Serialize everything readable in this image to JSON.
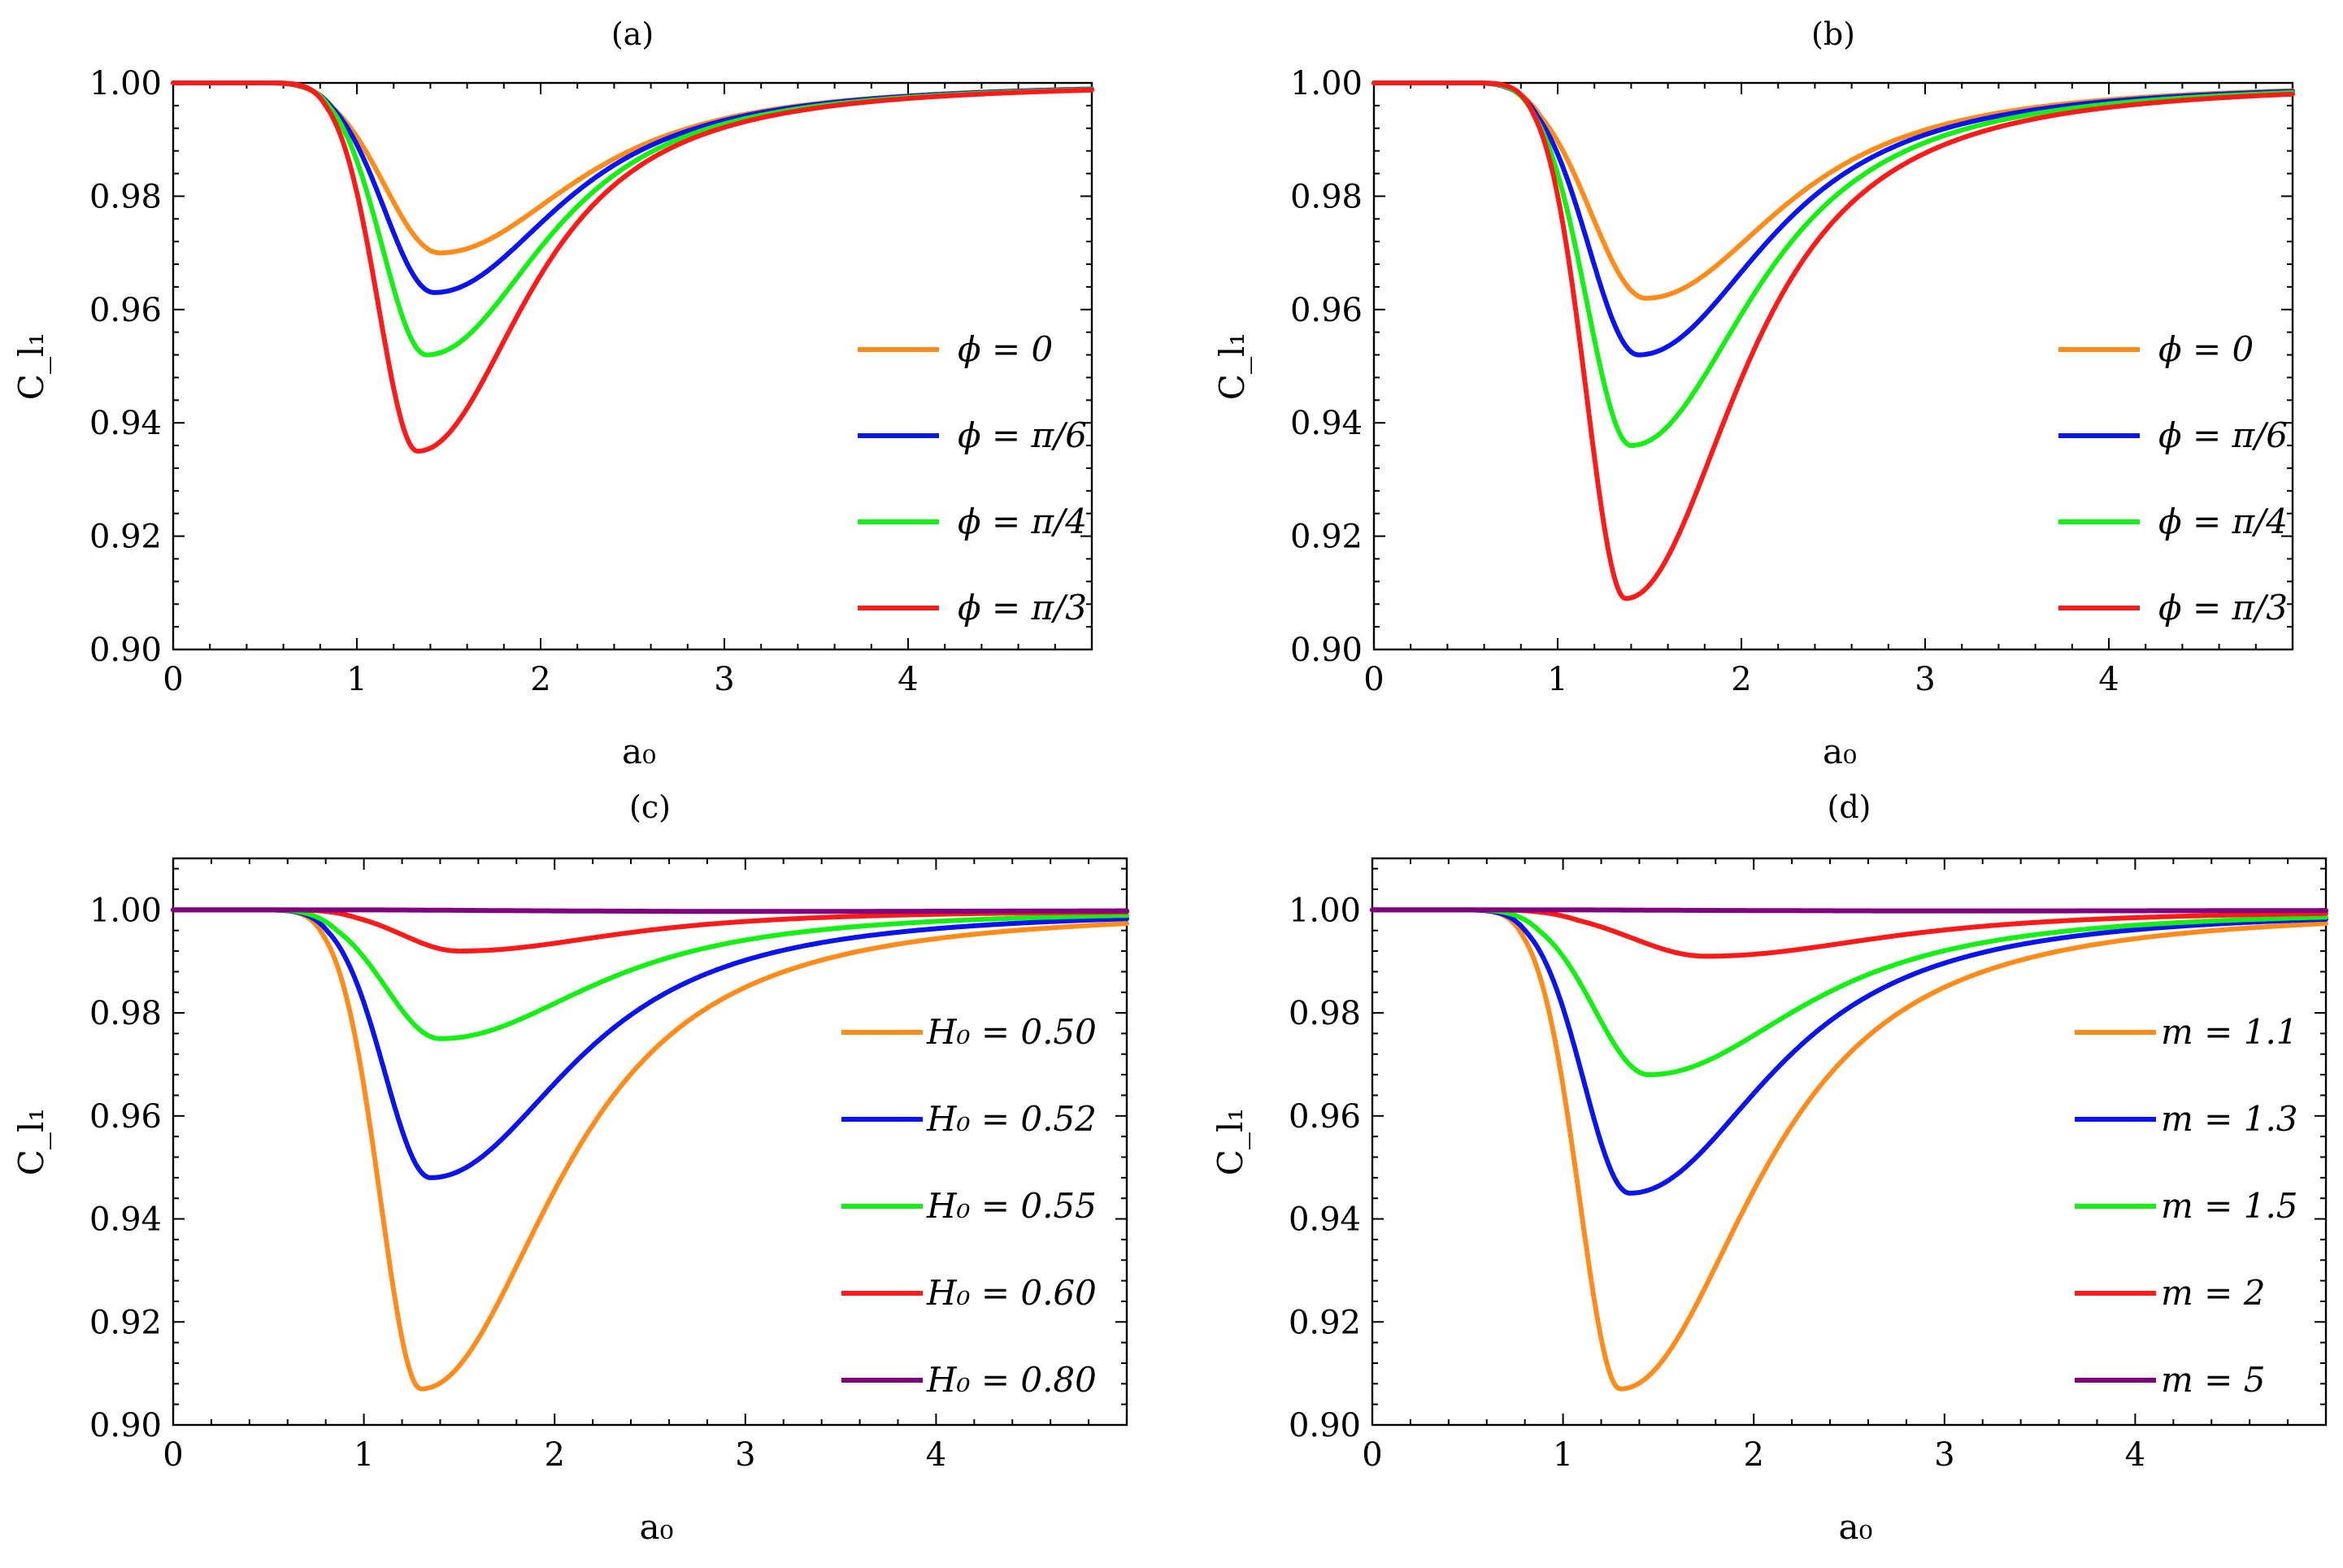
{
  "figure": {
    "panels": [
      "(a)",
      "(b)",
      "(c)",
      "(d)"
    ]
  },
  "chart_data": [
    {
      "type": "line",
      "title": "(a)",
      "xlabel": "a₀",
      "ylabel": "C_l₁",
      "xlim": [
        0,
        5
      ],
      "ylim": [
        0.9,
        1.0
      ],
      "x_ticks": [
        "0",
        "1",
        "2",
        "3",
        "4"
      ],
      "y_ticks": [
        "0.90",
        "0.92",
        "0.94",
        "0.96",
        "0.98",
        "1.00"
      ],
      "legend_position": "right",
      "series": [
        {
          "name": "ϕ = 0",
          "color": "#FF8C1A",
          "min_x": 1.45,
          "min_y": 0.97,
          "onset": 0.55,
          "w_left": 0.42,
          "w_right": 1.05
        },
        {
          "name": "ϕ = π/6",
          "color": "#0A14F0",
          "min_x": 1.42,
          "min_y": 0.963,
          "onset": 0.55,
          "w_left": 0.38,
          "w_right": 0.98
        },
        {
          "name": "ϕ = π/4",
          "color": "#14F014",
          "min_x": 1.38,
          "min_y": 0.952,
          "onset": 0.55,
          "w_left": 0.34,
          "w_right": 0.92
        },
        {
          "name": "ϕ = π/3",
          "color": "#FF1A1A",
          "min_x": 1.33,
          "min_y": 0.935,
          "onset": 0.55,
          "w_left": 0.3,
          "w_right": 0.85
        }
      ]
    },
    {
      "type": "line",
      "title": "(b)",
      "xlabel": "a₀",
      "ylabel": "C_l₁",
      "xlim": [
        0,
        5
      ],
      "ylim": [
        0.9,
        1.0
      ],
      "x_ticks": [
        "0",
        "1",
        "2",
        "3",
        "4"
      ],
      "y_ticks": [
        "0.90",
        "0.92",
        "0.94",
        "0.96",
        "0.98",
        "1.00"
      ],
      "legend_position": "right",
      "series": [
        {
          "name": "ϕ = 0",
          "color": "#FF8C1A",
          "min_x": 1.48,
          "min_y": 0.962,
          "onset": 0.58,
          "w_left": 0.42,
          "w_right": 1.05
        },
        {
          "name": "ϕ = π/6",
          "color": "#0A14F0",
          "min_x": 1.44,
          "min_y": 0.952,
          "onset": 0.58,
          "w_left": 0.38,
          "w_right": 1.0
        },
        {
          "name": "ϕ = π/4",
          "color": "#14F014",
          "min_x": 1.4,
          "min_y": 0.936,
          "onset": 0.58,
          "w_left": 0.34,
          "w_right": 0.95
        },
        {
          "name": "ϕ = π/3",
          "color": "#FF1A1A",
          "min_x": 1.37,
          "min_y": 0.909,
          "onset": 0.58,
          "w_left": 0.3,
          "w_right": 0.88
        }
      ]
    },
    {
      "type": "line",
      "title": "(c)",
      "xlabel": "a₀",
      "ylabel": "C_l₁",
      "xlim": [
        0,
        5
      ],
      "ylim": [
        0.9,
        1.01
      ],
      "x_ticks": [
        "0",
        "1",
        "2",
        "3",
        "4"
      ],
      "y_ticks": [
        "0.90",
        "0.92",
        "0.94",
        "0.96",
        "0.98",
        "1.00"
      ],
      "legend_position": "right",
      "series": [
        {
          "name": "H₀ = 0.50",
          "color": "#FF8C1A",
          "min_x": 1.3,
          "min_y": 0.907,
          "onset": 0.5,
          "w_left": 0.3,
          "w_right": 1.0
        },
        {
          "name": "H₀ = 0.52",
          "color": "#0A14F0",
          "min_x": 1.35,
          "min_y": 0.948,
          "onset": 0.5,
          "w_left": 0.34,
          "w_right": 1.05
        },
        {
          "name": "H₀ = 0.55",
          "color": "#14F014",
          "min_x": 1.4,
          "min_y": 0.975,
          "onset": 0.55,
          "w_left": 0.4,
          "w_right": 1.15
        },
        {
          "name": "H₀ = 0.60",
          "color": "#FF1A1A",
          "min_x": 1.5,
          "min_y": 0.992,
          "onset": 0.65,
          "w_left": 0.42,
          "w_right": 1.2
        },
        {
          "name": "H₀ = 0.80",
          "color": "#800080",
          "min_x": 3.0,
          "min_y": 0.9997,
          "onset": 1.0,
          "w_left": 1.5,
          "w_right": 3.0
        }
      ]
    },
    {
      "type": "line",
      "title": "(d)",
      "xlabel": "a₀",
      "ylabel": "C_l₁",
      "xlim": [
        0,
        5
      ],
      "ylim": [
        0.9,
        1.01
      ],
      "x_ticks": [
        "0",
        "1",
        "2",
        "3",
        "4"
      ],
      "y_ticks": [
        "0.90",
        "0.92",
        "0.94",
        "0.96",
        "0.98",
        "1.00"
      ],
      "legend_position": "right",
      "series": [
        {
          "name": "m = 1.1",
          "color": "#FF8C1A",
          "min_x": 1.3,
          "min_y": 0.907,
          "onset": 0.5,
          "w_left": 0.3,
          "w_right": 1.0
        },
        {
          "name": "m = 1.3",
          "color": "#0A14F0",
          "min_x": 1.35,
          "min_y": 0.945,
          "onset": 0.5,
          "w_left": 0.34,
          "w_right": 1.05
        },
        {
          "name": "m = 1.5",
          "color": "#14F014",
          "min_x": 1.45,
          "min_y": 0.968,
          "onset": 0.55,
          "w_left": 0.4,
          "w_right": 1.15
        },
        {
          "name": "m = 2",
          "color": "#FF1A1A",
          "min_x": 1.75,
          "min_y": 0.991,
          "onset": 0.7,
          "w_left": 0.55,
          "w_right": 1.35
        },
        {
          "name": "m = 5",
          "color": "#800080",
          "min_x": 3.0,
          "min_y": 0.9998,
          "onset": 1.0,
          "w_left": 1.5,
          "w_right": 3.0
        }
      ]
    }
  ]
}
